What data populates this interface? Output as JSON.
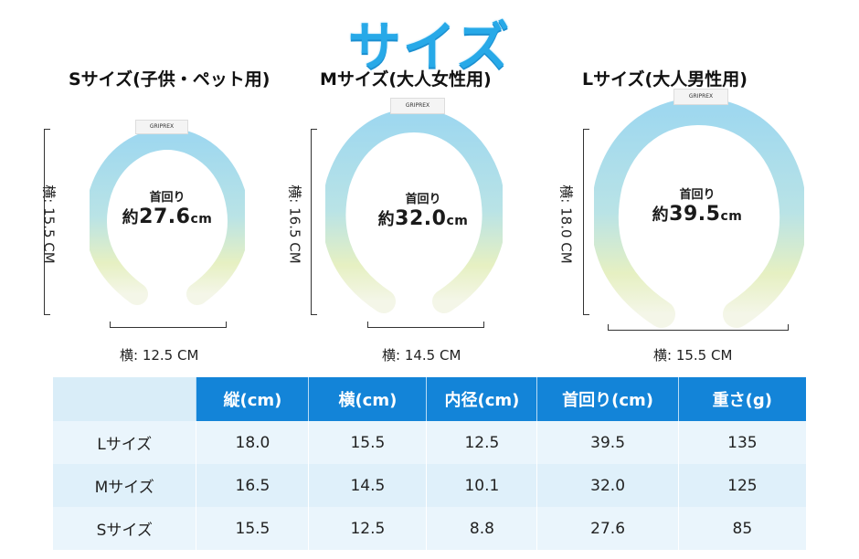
{
  "title": "サイズ",
  "sizes": [
    {
      "label": "Sサイズ(子供・ペット用)",
      "height": "横: 15.5 CM",
      "width": "横: 12.5 CM",
      "neck_label": "首回り",
      "neck_prefix": "約",
      "neck_value": "27.6",
      "neck_unit": "cm",
      "brand": "GRIPREX"
    },
    {
      "label": "Mサイズ(大人女性用)",
      "height": "横: 16.5 CM",
      "width": "横: 14.5 CM",
      "neck_label": "首回り",
      "neck_prefix": "約",
      "neck_value": "32.0",
      "neck_unit": "cm",
      "brand": "GRIPREX"
    },
    {
      "label": "Lサイズ(大人男性用)",
      "height": "横: 18.0 CM",
      "width": "横: 15.5 CM",
      "neck_label": "首回り",
      "neck_prefix": "約",
      "neck_value": "39.5",
      "neck_unit": "cm",
      "brand": "GRIPREX"
    }
  ],
  "table": {
    "headers": [
      "縦(cm)",
      "横(cm)",
      "内径(cm)",
      "首回り(cm)",
      "重さ(g)"
    ],
    "rows": [
      {
        "name": "Lサイズ",
        "cells": [
          "18.0",
          "15.5",
          "12.5",
          "39.5",
          "135"
        ]
      },
      {
        "name": "Mサイズ",
        "cells": [
          "16.5",
          "14.5",
          "10.1",
          "32.0",
          "125"
        ]
      },
      {
        "name": "Sサイズ",
        "cells": [
          "15.5",
          "12.5",
          "8.8",
          "27.6",
          "85"
        ]
      }
    ]
  },
  "colors": {
    "accent": "#1384d8",
    "title": "#27a9e8",
    "ring_top": "#9fd8ef",
    "ring_bottom": "#eef4c9"
  }
}
